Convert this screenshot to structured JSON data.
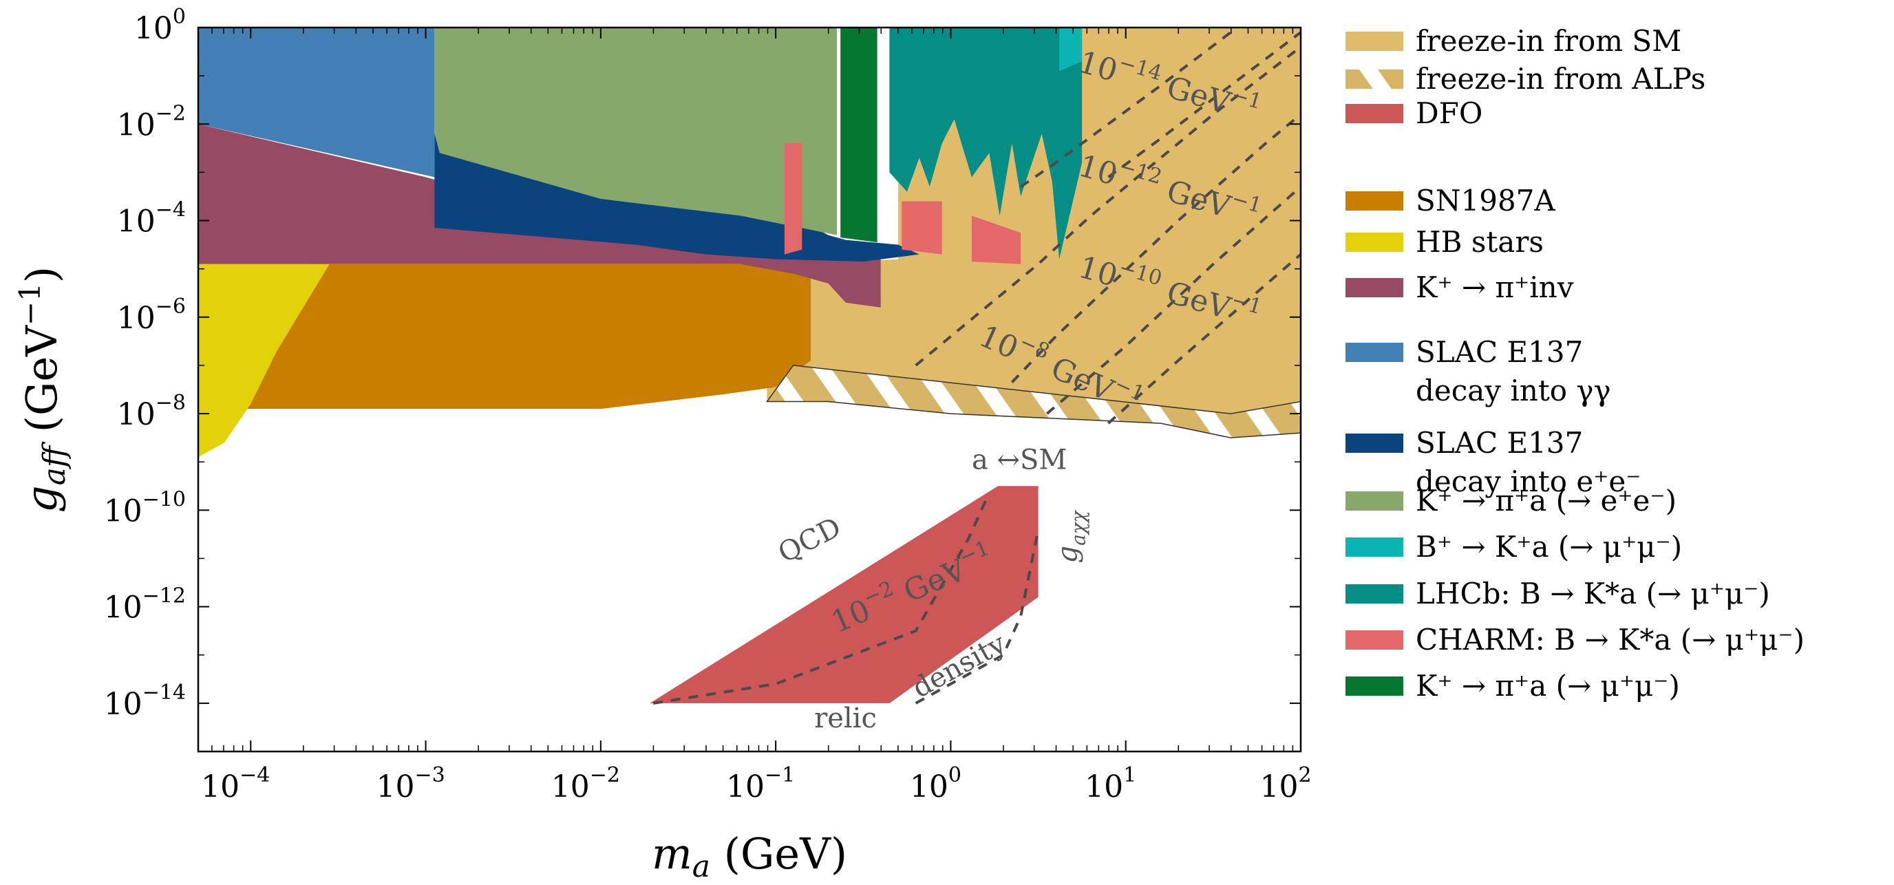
{
  "chart_data": {
    "type": "area",
    "xlabel_var": "m",
    "xlabel_sub": "a",
    "xlabel_unit": "(GeV)",
    "ylabel_var": "g",
    "ylabel_sub": "aff",
    "ylabel_unit_open": "(GeV",
    "ylabel_unit_exp": "−1",
    "ylabel_unit_close": ")",
    "xscale": "log",
    "yscale": "log",
    "xlim_log10": [
      -4.3,
      2
    ],
    "ylim_log10": [
      -15,
      0
    ],
    "x_ticks": [
      {
        "base": "10",
        "exp": "−4",
        "log10": -4
      },
      {
        "base": "10",
        "exp": "−3",
        "log10": -3
      },
      {
        "base": "10",
        "exp": "−2",
        "log10": -2
      },
      {
        "base": "10",
        "exp": "−1",
        "log10": -1
      },
      {
        "base": "10",
        "exp": "0",
        "log10": 0
      },
      {
        "base": "10",
        "exp": "1",
        "log10": 1
      },
      {
        "base": "10",
        "exp": "2",
        "log10": 2
      }
    ],
    "y_ticks": [
      {
        "base": "10",
        "exp": "0",
        "log10": 0
      },
      {
        "base": "10",
        "exp": "−2",
        "log10": -2
      },
      {
        "base": "10",
        "exp": "−4",
        "log10": -4
      },
      {
        "base": "10",
        "exp": "−6",
        "log10": -6
      },
      {
        "base": "10",
        "exp": "−8",
        "log10": -8
      },
      {
        "base": "10",
        "exp": "−10",
        "log10": -10
      },
      {
        "base": "10",
        "exp": "−12",
        "log10": -12
      },
      {
        "base": "10",
        "exp": "−14",
        "log10": -14
      }
    ],
    "regions": [
      {
        "id": "freeze-in-sm",
        "color": "#e0bc6a",
        "points": [
          [
            -1.05,
            -7.7
          ],
          [
            -0.7,
            -7.7
          ],
          [
            0,
            -7.95
          ],
          [
            0.6,
            -8.05
          ],
          [
            1.2,
            -8.1
          ],
          [
            1.6,
            -8.45
          ],
          [
            2,
            -8.3
          ],
          [
            2,
            0
          ],
          [
            -0.3,
            0
          ],
          [
            -0.3,
            -4.8
          ],
          [
            -0.8,
            -4.9
          ],
          [
            -0.8,
            -5.6
          ],
          [
            -1.05,
            -6.1
          ]
        ]
      },
      {
        "id": "sn1987a",
        "color": "#c97e00",
        "points": [
          [
            -3.65,
            -4.9
          ],
          [
            -0.8,
            -4.9
          ],
          [
            -0.8,
            -6.9
          ],
          [
            -1.0,
            -7.45
          ],
          [
            -1.3,
            -7.6
          ],
          [
            -2.0,
            -7.9
          ],
          [
            -4.05,
            -7.9
          ]
        ]
      },
      {
        "id": "hb-stars",
        "color": "#e3d10a",
        "points": [
          [
            -4.3,
            -4.9
          ],
          [
            -3.55,
            -4.9
          ],
          [
            -3.7,
            -5.8
          ],
          [
            -3.85,
            -6.7
          ],
          [
            -4.0,
            -7.8
          ],
          [
            -4.15,
            -8.6
          ],
          [
            -4.3,
            -8.9
          ]
        ]
      },
      {
        "id": "k-pi-inv",
        "color": "#964a64",
        "points": [
          [
            -4.3,
            -2.0
          ],
          [
            -3.0,
            -3.1
          ],
          [
            -2.2,
            -3.9
          ],
          [
            -1.4,
            -4.4
          ],
          [
            -0.7,
            -4.6
          ],
          [
            -0.4,
            -4.6
          ],
          [
            -0.4,
            -5.8
          ],
          [
            -0.6,
            -5.7
          ],
          [
            -0.7,
            -5.3
          ],
          [
            -0.9,
            -5.1
          ],
          [
            -1.2,
            -4.9
          ],
          [
            -4.3,
            -4.9
          ]
        ]
      },
      {
        "id": "slac-gg",
        "color": "#4380b6",
        "points": [
          [
            -4.3,
            0
          ],
          [
            -2.95,
            0
          ],
          [
            -2.95,
            -3.1
          ],
          [
            -4.3,
            -2.0
          ]
        ]
      },
      {
        "id": "slac-ee",
        "color": "#0a437e",
        "points": [
          [
            -2.95,
            -2.2
          ],
          [
            -2.85,
            -2.6
          ],
          [
            -1.5,
            -3.2
          ],
          [
            -0.9,
            -3.9
          ],
          [
            -0.7,
            -4.3
          ],
          [
            -0.6,
            -4.4
          ],
          [
            -0.3,
            -4.5
          ],
          [
            -0.18,
            -4.7
          ],
          [
            -0.5,
            -4.85
          ],
          [
            -1.0,
            -4.8
          ],
          [
            -1.4,
            -4.7
          ],
          [
            -1.8,
            -4.5
          ],
          [
            -2.95,
            -4.15
          ]
        ]
      },
      {
        "id": "k-pi-ee",
        "color": "#86a96b",
        "points": [
          [
            -2.95,
            0
          ],
          [
            -0.65,
            0
          ],
          [
            -0.65,
            -4.3
          ],
          [
            -1.2,
            -3.9
          ],
          [
            -2.0,
            -3.55
          ],
          [
            -2.92,
            -2.6
          ],
          [
            -2.95,
            -2.2
          ]
        ]
      },
      {
        "id": "lhcb",
        "color": "#048e86",
        "points": [
          [
            -0.35,
            0
          ],
          [
            0.75,
            0
          ],
          [
            0.75,
            -2.8
          ],
          [
            0.62,
            -4.8
          ],
          [
            0.58,
            -3.2
          ],
          [
            0.52,
            -2.2
          ],
          [
            0.4,
            -3.5
          ],
          [
            0.35,
            -2.4
          ],
          [
            0.28,
            -3.9
          ],
          [
            0.22,
            -2.6
          ],
          [
            0.12,
            -3.1
          ],
          [
            0.02,
            -1.9
          ],
          [
            -0.05,
            -2.4
          ],
          [
            -0.12,
            -3.3
          ],
          [
            -0.18,
            -2.7
          ],
          [
            -0.25,
            -3.4
          ],
          [
            -0.35,
            -3.0
          ]
        ]
      },
      {
        "id": "b-k-mumu",
        "color": "#0bb5b4",
        "points": [
          [
            0.62,
            0
          ],
          [
            0.75,
            0
          ],
          [
            0.75,
            -0.7
          ],
          [
            0.62,
            -0.9
          ]
        ]
      },
      {
        "id": "charm",
        "color": "#e46769",
        "points": [
          [
            -0.95,
            -2.4
          ],
          [
            -0.85,
            -2.4
          ],
          [
            -0.85,
            -4.6
          ],
          [
            -0.95,
            -4.7
          ]
        ]
      },
      {
        "id": "charm-2",
        "color": "#e46769",
        "points": [
          [
            -0.28,
            -3.6
          ],
          [
            -0.05,
            -3.6
          ],
          [
            -0.05,
            -4.7
          ],
          [
            -0.28,
            -4.6
          ]
        ]
      },
      {
        "id": "charm-3",
        "color": "#e46769",
        "points": [
          [
            0.12,
            -3.9
          ],
          [
            0.4,
            -4.25
          ],
          [
            0.4,
            -4.9
          ],
          [
            0.12,
            -4.85
          ]
        ]
      },
      {
        "id": "k-pi-mumu",
        "color": "#05772e",
        "points": [
          [
            -0.63,
            0
          ],
          [
            -0.42,
            0
          ],
          [
            -0.42,
            -4.45
          ],
          [
            -0.63,
            -4.35
          ]
        ]
      },
      {
        "id": "dfo",
        "color": "#cd5757",
        "points": [
          [
            -1.72,
            -14.0
          ],
          [
            -0.35,
            -14.0
          ],
          [
            0.5,
            -11.8
          ],
          [
            0.5,
            -9.5
          ],
          [
            0.27,
            -9.5
          ],
          [
            -1.72,
            -14.0
          ]
        ]
      }
    ],
    "hatch_band": {
      "color": "#d7b466",
      "points": [
        [
          -0.9,
          -7.0
        ],
        [
          1.6,
          -8.0
        ],
        [
          2,
          -7.75
        ],
        [
          2,
          -8.4
        ],
        [
          1.6,
          -8.5
        ],
        [
          1.2,
          -8.2
        ],
        [
          0.6,
          -8.1
        ],
        [
          0,
          -8.0
        ],
        [
          -0.7,
          -7.75
        ],
        [
          -1.05,
          -7.75
        ]
      ]
    },
    "dashed_lines": [
      [
        [
          -0.2,
          -7.0
        ],
        [
          0.0,
          -6.4
        ],
        [
          0.5,
          -4.9
        ],
        [
          0.8,
          -3.9
        ],
        [
          1.5,
          -1.8
        ],
        [
          2.0,
          -0.4
        ]
      ],
      [
        [
          0.35,
          -7.35
        ],
        [
          0.6,
          -6.4
        ],
        [
          1.3,
          -4.0
        ],
        [
          1.8,
          -2.4
        ],
        [
          2.0,
          -1.8
        ]
      ],
      [
        [
          0.55,
          -8.0
        ],
        [
          1.0,
          -6.6
        ],
        [
          1.5,
          -4.9
        ],
        [
          2.0,
          -3.3
        ]
      ],
      [
        [
          0.9,
          -8.2
        ],
        [
          1.3,
          -6.9
        ],
        [
          2.0,
          -4.7
        ]
      ],
      [
        [
          0.4,
          -3.3
        ],
        [
          0.6,
          -2.8
        ],
        [
          1.2,
          -1.2
        ],
        [
          1.6,
          -0.1
        ]
      ],
      [
        [
          0.9,
          -3.1
        ],
        [
          1.2,
          -2.3
        ],
        [
          2.0,
          -0.1
        ]
      ],
      [
        [
          -1.7,
          -14.0
        ],
        [
          -1.0,
          -13.6
        ],
        [
          -0.2,
          -12.5
        ],
        [
          0.1,
          -10.6
        ],
        [
          0.2,
          -9.8
        ]
      ],
      [
        [
          -0.2,
          -14.0
        ],
        [
          0.3,
          -13.0
        ],
        [
          0.4,
          -12.2
        ],
        [
          0.5,
          -10.4
        ]
      ]
    ],
    "line_annotations": [
      {
        "base": "10",
        "exp": "−14",
        "unit": " GeV",
        "unit_exp": "−1",
        "x": 0.72,
        "y": -0.9,
        "angle": 16
      },
      {
        "base": "10",
        "exp": "−12",
        "unit": " GeV",
        "unit_exp": "−1",
        "x": 0.72,
        "y": -3.05,
        "angle": 16
      },
      {
        "base": "10",
        "exp": "−10",
        "unit": " GeV",
        "unit_exp": "−1",
        "x": 0.72,
        "y": -5.15,
        "angle": 16
      },
      {
        "base": "10",
        "exp": "−8",
        "unit": " GeV",
        "unit_exp": "−1",
        "x": 0.15,
        "y": -6.55,
        "angle": 24
      },
      {
        "base": "10",
        "exp": "−2",
        "unit": " GeV",
        "unit_exp": "−1",
        "x": -0.65,
        "y": -12.55,
        "angle": -23
      }
    ],
    "text_annotations": [
      {
        "text": "QCD",
        "x": -0.95,
        "y": -11.1,
        "angle": -27
      },
      {
        "text": "relic",
        "x": -0.78,
        "y": -14.5,
        "angle": 0
      },
      {
        "text": "density",
        "x": -0.18,
        "y": -13.9,
        "angle": -29
      },
      {
        "text": "a ↔SM",
        "x": 0.12,
        "y": -9.15,
        "angle": 0
      },
      {
        "text": "g",
        "sub": "aχχ",
        "x": 0.72,
        "y": -11.1,
        "angle": -90
      }
    ],
    "legend": [
      {
        "label": "freeze-in from SM",
        "color": "#e0bc6a",
        "hatch": false
      },
      {
        "label": "freeze-in from ALPs",
        "color": "#e0bc6a",
        "hatch": true
      },
      {
        "label": "DFO",
        "color": "#cd5757",
        "hatch": false
      },
      {
        "label": "SN1987A",
        "color": "#c97e00",
        "hatch": false
      },
      {
        "label": "HB stars",
        "color": "#e3d10a",
        "hatch": false
      },
      {
        "label": "K⁺ → π⁺inv",
        "color": "#964a64",
        "hatch": false
      },
      {
        "label": "SLAC E137",
        "label2": "decay into γγ",
        "color": "#4380b6",
        "hatch": false
      },
      {
        "label": "SLAC E137",
        "label2": "decay into e⁺e⁻",
        "color": "#0a437e",
        "hatch": false
      },
      {
        "label": "K⁺ → π⁺a (→ e⁺e⁻)",
        "color": "#86a96b",
        "hatch": false
      },
      {
        "label": "B⁺ → K⁺a (→ μ⁺μ⁻)",
        "color": "#0bb5b4",
        "hatch": false
      },
      {
        "label": "LHCb: B → K*a (→ μ⁺μ⁻)",
        "color": "#048e86",
        "hatch": false
      },
      {
        "label": "CHARM: B → K*a (→ μ⁺μ⁻)",
        "color": "#e46769",
        "hatch": false
      },
      {
        "label": "K⁺ → π⁺a (→ μ⁺μ⁻)",
        "color": "#05772e",
        "hatch": false
      }
    ]
  }
}
